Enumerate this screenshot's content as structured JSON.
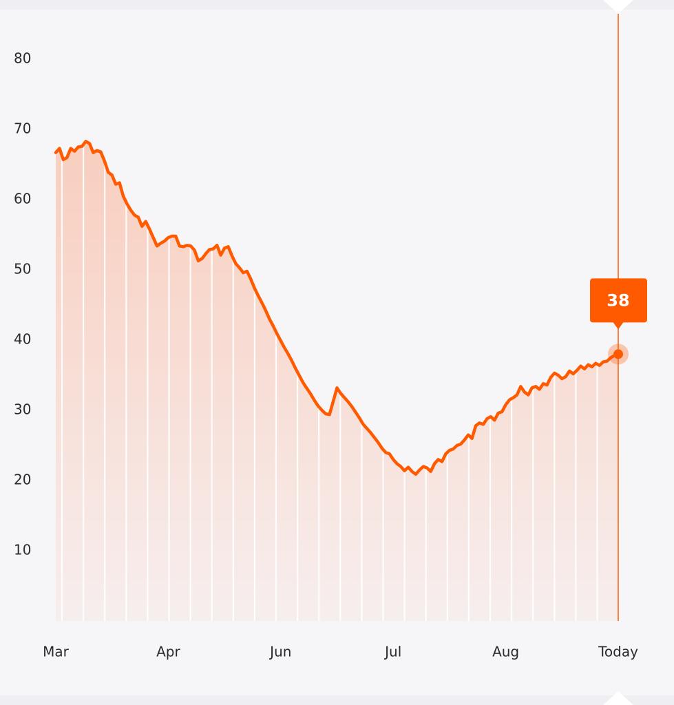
{
  "chart_data": {
    "type": "line",
    "categories": [
      "Mar",
      null,
      null,
      null,
      null,
      null,
      null,
      null,
      null,
      null,
      null,
      null,
      null,
      null,
      null,
      null,
      null,
      null,
      null,
      null,
      null,
      null,
      null,
      null,
      null,
      null,
      null,
      null,
      null,
      null,
      "Apr",
      null,
      null,
      null,
      null,
      null,
      null,
      null,
      null,
      null,
      null,
      null,
      null,
      null,
      null,
      null,
      null,
      null,
      null,
      null,
      null,
      null,
      null,
      null,
      null,
      null,
      null,
      null,
      null,
      null,
      "Jun",
      null,
      null,
      null,
      null,
      null,
      null,
      null,
      null,
      null,
      null,
      null,
      null,
      null,
      null,
      null,
      null,
      null,
      null,
      null,
      null,
      null,
      null,
      null,
      null,
      null,
      null,
      null,
      null,
      null,
      "Jul",
      null,
      null,
      null,
      null,
      null,
      null,
      null,
      null,
      null,
      null,
      null,
      null,
      null,
      null,
      null,
      null,
      null,
      null,
      null,
      null,
      null,
      null,
      null,
      null,
      null,
      null,
      null,
      null,
      null,
      "Aug",
      null,
      null,
      null,
      null,
      null,
      null,
      null,
      null,
      null,
      null,
      null,
      null,
      null,
      null,
      null,
      null,
      null,
      null,
      null,
      null,
      null,
      null,
      null,
      null,
      null,
      null,
      null,
      null,
      null,
      "Today"
    ],
    "values": [
      66.7,
      67.3,
      65.7,
      66.0,
      67.3,
      66.9,
      67.5,
      67.6,
      68.3,
      68.0,
      66.7,
      67.0,
      66.8,
      65.5,
      63.9,
      63.5,
      62.2,
      62.4,
      60.5,
      59.4,
      58.5,
      57.8,
      57.5,
      56.2,
      56.9,
      55.8,
      54.6,
      53.4,
      53.8,
      54.1,
      54.6,
      54.8,
      54.8,
      53.4,
      53.3,
      53.5,
      53.4,
      52.8,
      51.3,
      51.6,
      52.3,
      52.9,
      53.0,
      53.5,
      52.1,
      53.1,
      53.3,
      52.0,
      50.9,
      50.3,
      49.6,
      49.8,
      48.7,
      47.4,
      46.3,
      45.3,
      44.2,
      43.0,
      42.0,
      40.9,
      39.9,
      38.9,
      38.0,
      37.0,
      35.9,
      34.9,
      33.9,
      33.1,
      32.3,
      31.4,
      30.6,
      30.0,
      29.5,
      29.4,
      31.3,
      33.2,
      32.4,
      31.8,
      31.2,
      30.5,
      29.7,
      28.9,
      28.0,
      27.4,
      26.8,
      26.1,
      25.4,
      24.6,
      24.0,
      23.8,
      23.0,
      22.4,
      22.0,
      21.4,
      21.9,
      21.3,
      20.9,
      21.5,
      22.0,
      21.8,
      21.3,
      22.4,
      23.0,
      22.7,
      23.8,
      24.3,
      24.5,
      25.0,
      25.2,
      25.8,
      26.5,
      26.0,
      27.8,
      28.2,
      28.0,
      28.8,
      29.1,
      28.6,
      29.6,
      29.8,
      30.8,
      31.5,
      31.8,
      32.2,
      33.4,
      32.6,
      32.2,
      33.2,
      33.4,
      33.0,
      33.8,
      33.6,
      34.7,
      35.3,
      35.0,
      34.5,
      34.8,
      35.6,
      35.2,
      35.7,
      36.3,
      35.9,
      36.5,
      36.2,
      36.7,
      36.4,
      36.9,
      37.0,
      37.5,
      37.8,
      38
    ],
    "color": "#ff5a00",
    "ylim": [
      0,
      80
    ],
    "yticks": [
      10,
      20,
      30,
      40,
      50,
      60,
      70,
      80
    ],
    "grid": false
  }
}
